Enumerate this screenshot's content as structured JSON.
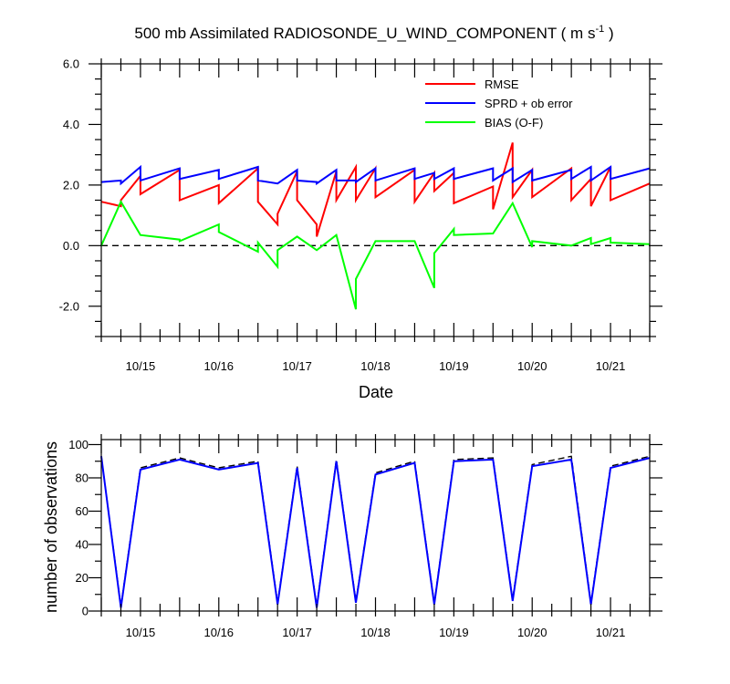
{
  "chart_data": [
    {
      "type": "line",
      "title": "500 mb Assimilated RADIOSONDE_U_WIND_COMPONENT ( m s",
      "title_sup": "-1",
      "title_end": " )",
      "xlabel": "Date",
      "ylabel": "",
      "ylim": [
        -3.0,
        6.0
      ],
      "xlim": [
        0,
        14
      ],
      "yticks": [
        -2.0,
        0.0,
        2.0,
        4.0,
        6.0
      ],
      "ytick_labels": [
        "-2.0",
        "0.0",
        "2.0",
        "4.0",
        "6.0"
      ],
      "xticks": [
        1,
        3,
        5,
        7,
        9,
        11,
        13
      ],
      "xtick_labels": [
        "10/15",
        "10/16",
        "10/17",
        "10/18",
        "10/19",
        "10/20",
        "10/21"
      ],
      "zero_line": true,
      "legend_placement": "top-right",
      "series": [
        {
          "name": "RMSE",
          "color": "#ff0000",
          "x": [
            0.0,
            0.5,
            0.5,
            1.0,
            1.0,
            2.0,
            2.0,
            3.0,
            3.0,
            4.0,
            4.0,
            4.5,
            4.5,
            5.0,
            5.0,
            5.5,
            5.5,
            6.0,
            6.0,
            6.5,
            6.5,
            7.0,
            7.0,
            8.0,
            8.0,
            8.5,
            8.5,
            9.0,
            9.0,
            10.0,
            10.0,
            10.5,
            10.5,
            11.0,
            11.0,
            12.0,
            12.0,
            12.5,
            12.5,
            13.0,
            13.0,
            14.0
          ],
          "y": [
            1.45,
            1.3,
            1.5,
            2.3,
            1.7,
            2.5,
            1.5,
            2.0,
            1.4,
            2.55,
            1.45,
            0.7,
            1.05,
            2.45,
            1.5,
            0.7,
            0.3,
            2.45,
            1.5,
            2.6,
            1.5,
            2.55,
            1.6,
            2.5,
            1.45,
            2.4,
            1.8,
            2.4,
            1.4,
            1.95,
            1.2,
            3.4,
            1.6,
            2.5,
            1.6,
            2.55,
            1.5,
            2.2,
            1.3,
            2.6,
            1.5,
            2.05
          ]
        },
        {
          "name": "SPRD + ob error",
          "color": "#0000ff",
          "x": [
            0.0,
            0.5,
            0.5,
            1.0,
            1.0,
            2.0,
            2.0,
            3.0,
            3.0,
            4.0,
            4.0,
            4.5,
            4.5,
            5.0,
            5.0,
            5.5,
            5.5,
            6.0,
            6.0,
            6.5,
            6.5,
            7.0,
            7.0,
            8.0,
            8.0,
            8.5,
            8.5,
            9.0,
            9.0,
            10.0,
            10.0,
            10.5,
            10.5,
            11.0,
            11.0,
            12.0,
            12.0,
            12.5,
            12.5,
            13.0,
            13.0,
            14.0
          ],
          "y": [
            2.1,
            2.15,
            2.05,
            2.6,
            2.15,
            2.55,
            2.2,
            2.5,
            2.2,
            2.6,
            2.15,
            2.05,
            2.05,
            2.5,
            2.15,
            2.1,
            2.05,
            2.5,
            2.15,
            2.15,
            2.1,
            2.55,
            2.15,
            2.55,
            2.2,
            2.4,
            2.2,
            2.55,
            2.2,
            2.55,
            2.15,
            2.55,
            2.1,
            2.5,
            2.15,
            2.5,
            2.2,
            2.6,
            2.15,
            2.6,
            2.2,
            2.55
          ]
        },
        {
          "name": "BIAS (O-F)",
          "color": "#00ff00",
          "x": [
            0.0,
            0.5,
            1.0,
            2.0,
            2.0,
            3.0,
            3.0,
            4.0,
            4.0,
            4.5,
            4.5,
            5.0,
            5.5,
            6.0,
            6.5,
            6.5,
            7.0,
            8.0,
            8.5,
            8.5,
            9.0,
            9.0,
            10.0,
            10.5,
            11.0,
            11.0,
            12.0,
            12.5,
            12.5,
            13.0,
            13.0,
            14.0
          ],
          "y": [
            0.0,
            1.45,
            0.35,
            0.2,
            0.15,
            0.7,
            0.45,
            -0.2,
            0.1,
            -0.7,
            -0.15,
            0.3,
            -0.15,
            0.35,
            -2.1,
            -1.1,
            0.15,
            0.15,
            -1.4,
            -0.25,
            0.55,
            0.35,
            0.4,
            1.4,
            -0.05,
            0.15,
            0.0,
            0.25,
            0.05,
            0.25,
            0.1,
            0.05
          ]
        }
      ]
    },
    {
      "type": "line",
      "title": "",
      "xlabel": "",
      "ylabel": "number of observations",
      "ylim": [
        0,
        103
      ],
      "xlim": [
        0,
        14
      ],
      "yticks": [
        0,
        20,
        40,
        60,
        80,
        100
      ],
      "ytick_labels": [
        "0",
        "20",
        "40",
        "60",
        "80",
        "100"
      ],
      "xticks": [
        1,
        3,
        5,
        7,
        9,
        11,
        13
      ],
      "xtick_labels": [
        "10/15",
        "10/16",
        "10/17",
        "10/18",
        "10/19",
        "10/20",
        "10/21"
      ],
      "series": [
        {
          "style": "dashed",
          "color": "#000000",
          "x": [
            0.0,
            0.5,
            1.0,
            2.0,
            3.0,
            4.0,
            4.5,
            5.0,
            5.5,
            6.0,
            6.5,
            7.0,
            8.0,
            8.5,
            9.0,
            10.0,
            10.5,
            11.0,
            12.0,
            12.5,
            13.0,
            14.0
          ],
          "y": [
            93,
            3,
            86,
            92,
            86,
            90,
            5,
            87,
            3,
            91,
            6,
            83,
            90,
            5,
            91,
            92,
            7,
            88,
            93,
            5,
            87,
            93
          ]
        },
        {
          "style": "solid",
          "color": "#0000ff",
          "x": [
            0.0,
            0.5,
            1.0,
            2.0,
            3.0,
            4.0,
            4.5,
            5.0,
            5.5,
            6.0,
            6.5,
            7.0,
            8.0,
            8.5,
            9.0,
            10.0,
            10.5,
            11.0,
            12.0,
            12.5,
            13.0,
            14.0
          ],
          "y": [
            93,
            2,
            85,
            91,
            85,
            89,
            4,
            86,
            2,
            90,
            5,
            82,
            89,
            4,
            90,
            91,
            6,
            87,
            91,
            4,
            86,
            92
          ]
        }
      ]
    }
  ]
}
